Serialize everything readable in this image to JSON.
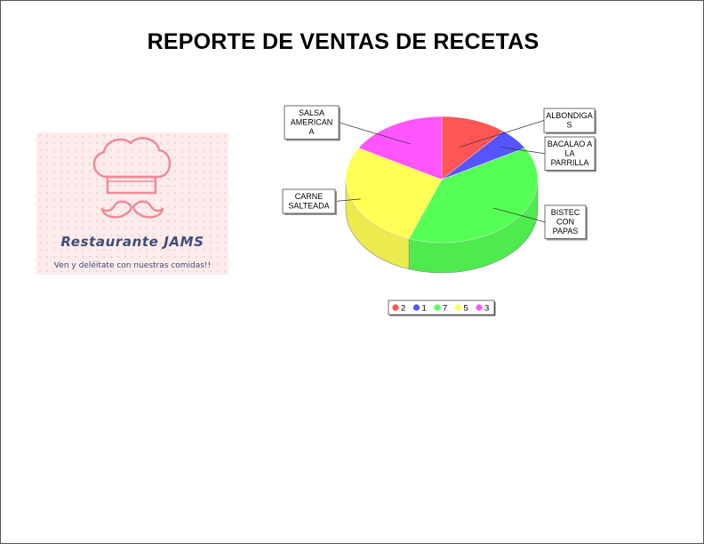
{
  "report": {
    "title": "REPORTE DE VENTAS DE RECETAS"
  },
  "logo": {
    "brand": "Restaurante JAMS",
    "tagline": "Ven y deléitate con nuestras comidas!!",
    "icon": "chef-hat-mustache-icon",
    "background_color": "#fcecec",
    "text_color": "#3f4d7a",
    "accent_color": "#f08a98"
  },
  "chart_data": {
    "type": "pie",
    "style": "3d",
    "title": "",
    "legend_position": "bottom-center",
    "slices": [
      {
        "label": "ALBONDIGAS",
        "value": 2,
        "color": "#ff5555"
      },
      {
        "label": "BACALAO A LA PARRILLA",
        "value": 1,
        "color": "#5555ff"
      },
      {
        "label": "BISTEC CON PAPAS",
        "value": 7,
        "color": "#55ff55"
      },
      {
        "label": "CARNE SALTEADA",
        "value": 5,
        "color": "#ffff55"
      },
      {
        "label": "SALSA AMERICANA",
        "value": 3,
        "color": "#ff55ff"
      }
    ]
  }
}
